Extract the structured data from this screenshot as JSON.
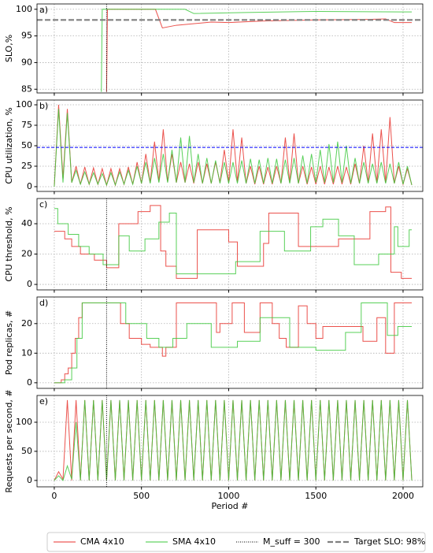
{
  "chart_data": [
    {
      "type": "line",
      "label": "a)",
      "y_label": "SLO,%",
      "xlim": [
        -99,
        2113
      ],
      "xticks": [
        0,
        500,
        1000,
        1500,
        2000
      ],
      "ylim": [
        84.3,
        101
      ],
      "yticks": [
        85,
        90,
        95,
        100
      ],
      "grid": true,
      "vline": {
        "name": "M_suff = 300",
        "x": 300,
        "color": "#000000"
      },
      "hline": {
        "name": "Target SLO: 98%",
        "y": 98,
        "color": "#808080"
      },
      "series": [
        {
          "name": "CMA 4x10",
          "color": "#e8322d",
          "x": [
            300,
            305,
            580,
            620,
            700,
            900,
            1000,
            1200,
            1500,
            1800,
            1900,
            1950,
            2050
          ],
          "values": [
            84.5,
            100,
            100,
            96.5,
            97,
            97.6,
            97.5,
            97.8,
            98,
            98.1,
            98.2,
            97.5,
            97.5
          ]
        },
        {
          "name": "SMA 4x10",
          "color": "#3cc83c",
          "x": [
            270,
            275,
            750,
            800,
            1100,
            1500,
            2050
          ],
          "values": [
            84.5,
            100,
            100,
            99.2,
            99.4,
            99.6,
            99.5
          ]
        }
      ]
    },
    {
      "type": "line",
      "label": "b)",
      "y_label": "CPU utilization, %",
      "xlim": [
        -99,
        2113
      ],
      "xticks": [
        0,
        500,
        1000,
        1500,
        2000
      ],
      "ylim": [
        -5.8,
        105.8
      ],
      "yticks": [
        0,
        25,
        50,
        75,
        100
      ],
      "grid": true,
      "show_m_suff": false,
      "hline": {
        "y": 48,
        "color": "#0000ff"
      },
      "x": [
        0,
        25,
        50,
        75,
        100,
        125,
        150,
        175,
        200,
        225,
        250,
        275,
        300,
        325,
        350,
        375,
        400,
        425,
        450,
        475,
        500,
        525,
        550,
        575,
        600,
        625,
        650,
        675,
        700,
        725,
        750,
        775,
        800,
        825,
        850,
        875,
        900,
        925,
        950,
        975,
        1000,
        1025,
        1050,
        1075,
        1100,
        1125,
        1150,
        1175,
        1200,
        1225,
        1250,
        1275,
        1300,
        1325,
        1350,
        1375,
        1400,
        1425,
        1450,
        1475,
        1500,
        1525,
        1550,
        1575,
        1600,
        1625,
        1650,
        1675,
        1700,
        1725,
        1750,
        1775,
        1800,
        1825,
        1850,
        1875,
        1900,
        1925,
        1950,
        1975,
        2000,
        2025,
        2050
      ],
      "series": [
        {
          "name": "CMA 4x10",
          "color": "#e8322d",
          "values": [
            0,
            100,
            10,
            95,
            5,
            25,
            3,
            24,
            3,
            23,
            3,
            22,
            2,
            22,
            2,
            22,
            3,
            24,
            3,
            30,
            4,
            40,
            5,
            55,
            6,
            70,
            6,
            40,
            5,
            30,
            5,
            28,
            4,
            30,
            4,
            28,
            4,
            30,
            5,
            45,
            5,
            70,
            6,
            60,
            4,
            25,
            3,
            25,
            3,
            24,
            3,
            25,
            4,
            60,
            5,
            65,
            4,
            25,
            3,
            24,
            3,
            25,
            3,
            24,
            3,
            25,
            3,
            24,
            3,
            28,
            4,
            50,
            5,
            65,
            5,
            70,
            5,
            85,
            4,
            25,
            3,
            22,
            2
          ]
        },
        {
          "name": "SMA 4x10",
          "color": "#3cc83c",
          "values": [
            0,
            95,
            5,
            90,
            5,
            20,
            3,
            18,
            3,
            17,
            3,
            16,
            2,
            17,
            2,
            18,
            3,
            20,
            3,
            25,
            4,
            30,
            4,
            35,
            5,
            40,
            5,
            45,
            5,
            60,
            5,
            62,
            5,
            40,
            4,
            35,
            4,
            32,
            4,
            30,
            4,
            30,
            4,
            32,
            4,
            34,
            4,
            33,
            4,
            35,
            4,
            34,
            4,
            33,
            4,
            35,
            4,
            38,
            4,
            40,
            5,
            45,
            5,
            52,
            5,
            55,
            5,
            50,
            4,
            35,
            4,
            30,
            4,
            28,
            4,
            30,
            4,
            28,
            4,
            30,
            3,
            25,
            2
          ]
        }
      ]
    },
    {
      "type": "line",
      "label": "c)",
      "y_label": "CPU threshold, %",
      "step": true,
      "xlim": [
        -99,
        2113
      ],
      "xticks": [
        0,
        500,
        1000,
        1500,
        2000
      ],
      "ylim": [
        -3.6,
        56.6
      ],
      "yticks": [
        0,
        20,
        40
      ],
      "grid": true,
      "show_m_suff": true,
      "series": [
        {
          "name": "CMA 4x10",
          "color": "#e8322d",
          "x": [
            0,
            60,
            100,
            150,
            230,
            300,
            370,
            480,
            550,
            610,
            640,
            700,
            820,
            1000,
            1050,
            1200,
            1230,
            1400,
            1630,
            1810,
            1900,
            1930,
            1990,
            2050
          ],
          "values": [
            35,
            30,
            25,
            20,
            16,
            11,
            40,
            48,
            52,
            22,
            12,
            4,
            36,
            28,
            12,
            27,
            47,
            25,
            30,
            48,
            51,
            8,
            4,
            4
          ]
        },
        {
          "name": "SMA 4x10",
          "color": "#3cc83c",
          "x": [
            0,
            20,
            80,
            140,
            200,
            280,
            370,
            430,
            520,
            600,
            660,
            700,
            1000,
            1040,
            1180,
            1320,
            1470,
            1540,
            1630,
            1720,
            1860,
            1950,
            1970,
            2035,
            2050
          ],
          "values": [
            50,
            40,
            33,
            25,
            20,
            13,
            32,
            22,
            30,
            41,
            47,
            7,
            7,
            15,
            35,
            22,
            38,
            43,
            32,
            13,
            20,
            38,
            25,
            36,
            36
          ]
        }
      ]
    },
    {
      "type": "line",
      "label": "d)",
      "y_label": "Pod replicas, #",
      "step": true,
      "xlim": [
        -99,
        2113
      ],
      "xticks": [
        0,
        500,
        1000,
        1500,
        2000
      ],
      "ylim": [
        -1.9,
        29
      ],
      "yticks": [
        0,
        10,
        20
      ],
      "grid": true,
      "show_m_suff": true,
      "series": [
        {
          "name": "CMA 4x10",
          "color": "#e8322d",
          "x": [
            0,
            40,
            60,
            80,
            100,
            120,
            140,
            160,
            380,
            430,
            500,
            550,
            620,
            640,
            700,
            930,
            950,
            1020,
            1090,
            1180,
            1250,
            1290,
            1330,
            1400,
            1450,
            1500,
            1540,
            1770,
            1850,
            1900,
            1950,
            2050
          ],
          "values": [
            0,
            1,
            3,
            5,
            10,
            15,
            22,
            27,
            20,
            15,
            13,
            12,
            9,
            12,
            27,
            17,
            20,
            27,
            17,
            27,
            20,
            15,
            12,
            26,
            20,
            15,
            19,
            14,
            22,
            10,
            27,
            27
          ]
        },
        {
          "name": "SMA 4x10",
          "color": "#3cc83c",
          "x": [
            0,
            60,
            100,
            130,
            160,
            410,
            530,
            600,
            680,
            760,
            900,
            1050,
            1180,
            1350,
            1500,
            1670,
            1760,
            1910,
            1970,
            2050
          ],
          "values": [
            0,
            1,
            5,
            15,
            27,
            20,
            15,
            12,
            15,
            20,
            12,
            14,
            22,
            12,
            11,
            17,
            27,
            16,
            19,
            19
          ]
        }
      ]
    },
    {
      "type": "line",
      "label": "e)",
      "y_label": "Requests per second, #",
      "x_label": "Period #",
      "xlim": [
        -99,
        2113
      ],
      "xticks": [
        0,
        500,
        1000,
        1500,
        2000
      ],
      "ylim": [
        -11,
        146
      ],
      "yticks": [
        0,
        50,
        100
      ],
      "grid": true,
      "show_m_suff": true,
      "x": [
        0,
        25,
        50,
        75,
        100,
        125,
        150,
        175,
        200,
        225,
        250,
        275,
        300,
        325,
        350,
        375,
        400,
        425,
        450,
        475,
        500,
        525,
        550,
        575,
        600,
        625,
        650,
        675,
        700,
        725,
        750,
        775,
        800,
        825,
        850,
        875,
        900,
        925,
        950,
        975,
        1000,
        1025,
        1050,
        1075,
        1100,
        1125,
        1150,
        1175,
        1200,
        1225,
        1250,
        1275,
        1300,
        1325,
        1350,
        1375,
        1400,
        1425,
        1450,
        1475,
        1500,
        1525,
        1550,
        1575,
        1600,
        1625,
        1650,
        1675,
        1700,
        1725,
        1750,
        1775,
        1800,
        1825,
        1850,
        1875,
        1900,
        1925,
        1950,
        1975,
        2000,
        2025,
        2050
      ],
      "series": [
        {
          "name": "CMA 4x10",
          "color": "#e8322d",
          "values": [
            0,
            15,
            2,
            138,
            0,
            138,
            0,
            138,
            0,
            138,
            0,
            138,
            0,
            138,
            0,
            138,
            0,
            138,
            0,
            138,
            0,
            138,
            0,
            138,
            0,
            138,
            0,
            138,
            0,
            138,
            0,
            138,
            0,
            138,
            0,
            138,
            0,
            138,
            0,
            138,
            0,
            138,
            0,
            138,
            0,
            138,
            0,
            138,
            0,
            138,
            0,
            138,
            0,
            138,
            0,
            138,
            0,
            138,
            0,
            138,
            0,
            138,
            0,
            138,
            0,
            138,
            0,
            138,
            0,
            138,
            0,
            138,
            0,
            138,
            0,
            138,
            0,
            138,
            0,
            138,
            0,
            138,
            0
          ]
        },
        {
          "name": "SMA 4x10",
          "color": "#3cc83c",
          "values": [
            0,
            8,
            0,
            25,
            2,
            100,
            0,
            138,
            0,
            138,
            0,
            138,
            0,
            138,
            0,
            138,
            0,
            138,
            0,
            138,
            0,
            138,
            0,
            138,
            0,
            138,
            0,
            138,
            0,
            138,
            0,
            138,
            0,
            138,
            0,
            138,
            0,
            138,
            0,
            138,
            0,
            138,
            0,
            138,
            0,
            138,
            0,
            138,
            0,
            138,
            0,
            138,
            0,
            138,
            0,
            138,
            0,
            138,
            0,
            138,
            0,
            138,
            0,
            138,
            0,
            138,
            0,
            138,
            0,
            138,
            0,
            138,
            0,
            138,
            0,
            138,
            0,
            138,
            0,
            138,
            0,
            138,
            0
          ]
        }
      ]
    }
  ]
}
